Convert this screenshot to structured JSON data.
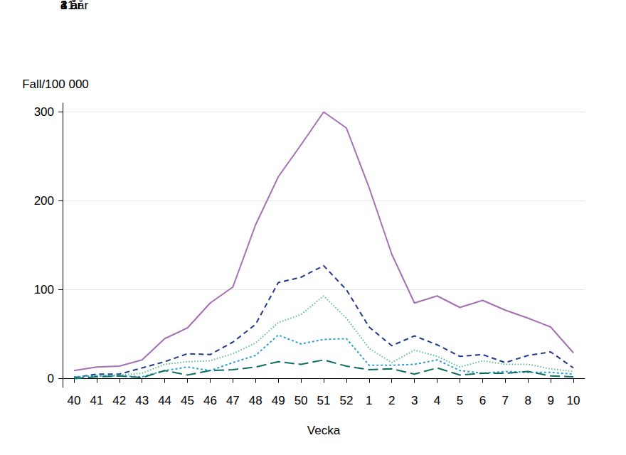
{
  "chart_data": {
    "type": "line",
    "y_label": "Fall/100 000",
    "x_label": "Vecka",
    "categories": [
      "40",
      "41",
      "42",
      "43",
      "44",
      "45",
      "46",
      "47",
      "48",
      "49",
      "50",
      "51",
      "52",
      "1",
      "2",
      "3",
      "4",
      "5",
      "6",
      "7",
      "8",
      "9",
      "10"
    ],
    "series": [
      {
        "name": "<1 år",
        "color": "#a66fb5",
        "line_style": "solid",
        "values": [
          9,
          13,
          14,
          21,
          45,
          57,
          85,
          103,
          173,
          227,
          263,
          300,
          282,
          215,
          140,
          85,
          93,
          80,
          88,
          77,
          68,
          58,
          29
        ]
      },
      {
        "name": "1 år",
        "color": "#1f3a8f",
        "line_style": "dashed",
        "values": [
          1,
          5,
          5,
          12,
          19,
          28,
          27,
          41,
          61,
          108,
          114,
          127,
          100,
          58,
          37,
          48,
          38,
          25,
          27,
          18,
          26,
          30,
          12
        ]
      },
      {
        "name": "2 år",
        "color": "#5cbf8f",
        "line_style": "dotted",
        "values": [
          2,
          3,
          4,
          6,
          16,
          19,
          20,
          28,
          40,
          63,
          72,
          93,
          68,
          34,
          18,
          32,
          25,
          13,
          20,
          16,
          16,
          11,
          8
        ]
      },
      {
        "name": "3 år",
        "color": "#2e9fd6",
        "line_style": "short_dashed",
        "values": [
          2,
          3,
          3,
          2,
          9,
          13,
          9,
          18,
          26,
          49,
          39,
          44,
          45,
          15,
          15,
          16,
          21,
          9,
          6,
          8,
          7,
          7,
          5
        ]
      },
      {
        "name": "4 år",
        "color": "#0e6e60",
        "line_style": "long_dashed",
        "values": [
          0,
          2,
          3,
          1,
          9,
          4,
          9,
          10,
          13,
          19,
          16,
          21,
          14,
          10,
          11,
          5,
          12,
          4,
          6,
          6,
          8,
          3,
          2
        ]
      }
    ],
    "ylim": [
      -10,
      310
    ],
    "yticks": [
      0,
      100,
      200,
      300
    ],
    "grid": true,
    "legend": "top"
  }
}
